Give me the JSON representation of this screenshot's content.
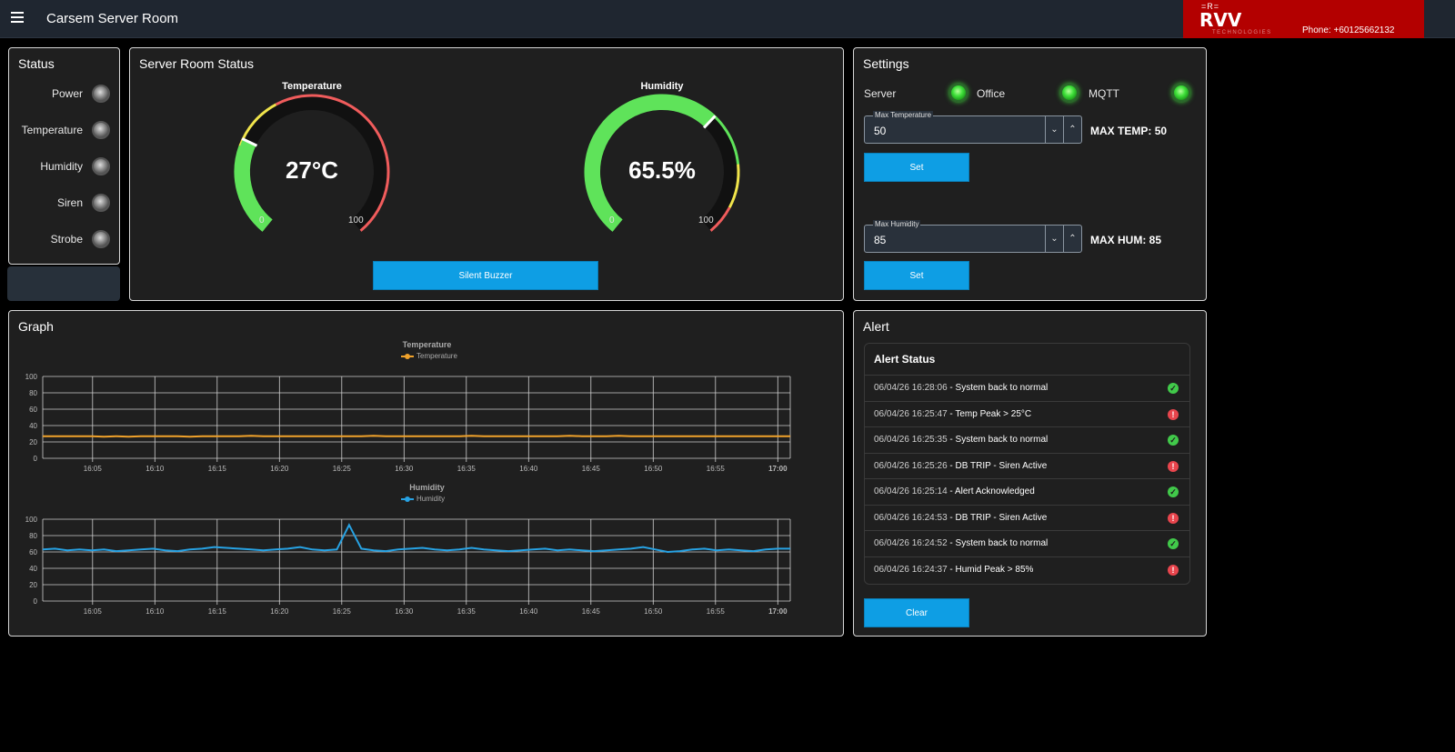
{
  "header": {
    "title": "Carsem Server Room",
    "brand_mark": "=R=",
    "brand_name": "RVV",
    "brand_sub": "TECHNOLOGIES",
    "phone": "Phone: +60125662132"
  },
  "status": {
    "title": "Status",
    "items": [
      {
        "label": "Power",
        "on": false
      },
      {
        "label": "Temperature",
        "on": false
      },
      {
        "label": "Humidity",
        "on": false
      },
      {
        "label": "Siren",
        "on": false
      },
      {
        "label": "Strobe",
        "on": false
      }
    ]
  },
  "server_room": {
    "title": "Server Room Status",
    "temperature": {
      "title": "Temperature",
      "value_text": "27°C",
      "value": 27,
      "min": "0",
      "max": "100",
      "colors": [
        "#5fe35a",
        "#f0e44b",
        "#f05c5c"
      ]
    },
    "humidity": {
      "title": "Humidity",
      "value_text": "65.5%",
      "value": 65.5,
      "min": "0",
      "max": "100",
      "colors": [
        "#5fe35a",
        "#f0e44b",
        "#f05c5c"
      ]
    },
    "silent_button": "Silent Buzzer"
  },
  "settings": {
    "title": "Settings",
    "connections": [
      {
        "label": "Server",
        "on": true
      },
      {
        "label": "Office",
        "on": true
      },
      {
        "label": "MQTT",
        "on": true
      }
    ],
    "max_temp": {
      "legend": "Max Temperature",
      "value": "50",
      "label": "MAX TEMP:",
      "current": "50",
      "set": "Set"
    },
    "max_hum": {
      "legend": "Max Humidity",
      "value": "85",
      "label": "MAX HUM:",
      "current": "85",
      "set": "Set"
    }
  },
  "graph": {
    "title": "Graph"
  },
  "chart_data": [
    {
      "type": "line",
      "title": "Temperature",
      "series": [
        {
          "name": "Temperature",
          "color": "#f0a22b",
          "values": [
            27,
            27,
            27,
            27,
            27,
            26.5,
            27,
            26.5,
            27,
            27,
            27,
            27,
            26.5,
            27,
            27,
            27,
            27,
            27.5,
            27,
            27,
            27,
            27,
            27,
            27,
            27,
            27,
            27,
            27.5,
            27,
            27,
            27,
            27,
            27,
            27,
            27,
            27.5,
            27,
            27,
            27,
            27,
            27,
            27,
            27,
            27.5,
            27,
            27,
            27,
            27.5,
            27,
            27,
            27,
            27,
            27,
            27,
            27,
            27,
            27,
            27,
            27,
            27,
            27,
            27
          ]
        }
      ],
      "x_start": "16:01",
      "x_end": "17:01",
      "xticks": [
        "16:05",
        "16:10",
        "16:15",
        "16:20",
        "16:25",
        "16:30",
        "16:35",
        "16:40",
        "16:45",
        "16:50",
        "16:55",
        "17:00"
      ],
      "yticks": [
        "0",
        "20",
        "40",
        "60",
        "80",
        "100"
      ],
      "ylim": [
        0,
        100
      ],
      "grid": true,
      "legend": "top-center"
    },
    {
      "type": "line",
      "title": "Humidity",
      "series": [
        {
          "name": "Humidity",
          "color": "#27a2e3",
          "values": [
            63,
            64,
            62,
            63,
            62,
            63,
            61,
            62,
            63,
            64,
            62,
            61,
            63,
            64,
            66,
            65,
            64,
            63,
            62,
            63,
            64,
            66,
            63,
            62,
            63,
            93,
            64,
            62,
            61,
            63,
            64,
            65,
            63,
            62,
            63,
            65,
            63,
            62,
            61,
            62,
            63,
            64,
            62,
            63,
            62,
            61,
            62,
            63,
            64,
            66,
            63,
            60,
            61,
            63,
            64,
            62,
            63,
            62,
            61,
            63,
            64,
            64
          ]
        }
      ],
      "x_start": "16:01",
      "x_end": "17:01",
      "xticks": [
        "16:05",
        "16:10",
        "16:15",
        "16:20",
        "16:25",
        "16:30",
        "16:35",
        "16:40",
        "16:45",
        "16:50",
        "16:55",
        "17:00"
      ],
      "yticks": [
        "0",
        "20",
        "40",
        "60",
        "80",
        "100"
      ],
      "ylim": [
        0,
        100
      ],
      "grid": true,
      "legend": "top-center"
    }
  ],
  "alerts": {
    "title": "Alert",
    "header": "Alert Status",
    "items": [
      {
        "time": "06/04/26 16:28:06",
        "text": " - System back to normal",
        "status": "ok"
      },
      {
        "time": "06/04/26 16:25:47",
        "text": " - Temp Peak > 25°C",
        "status": "bad"
      },
      {
        "time": "06/04/26 16:25:35",
        "text": " - System back to normal",
        "status": "ok"
      },
      {
        "time": "06/04/26 16:25:26",
        "text": " - DB TRIP - Siren Active",
        "status": "bad"
      },
      {
        "time": "06/04/26 16:25:14",
        "text": " - Alert Acknowledged",
        "status": "ok"
      },
      {
        "time": "06/04/26 16:24:53",
        "text": " - DB TRIP - Siren Active",
        "status": "bad"
      },
      {
        "time": "06/04/26 16:24:52",
        "text": " - System back to normal",
        "status": "ok"
      },
      {
        "time": "06/04/26 16:24:37",
        "text": " - Humid Peak > 85%",
        "status": "bad"
      }
    ],
    "clear": "Clear"
  }
}
